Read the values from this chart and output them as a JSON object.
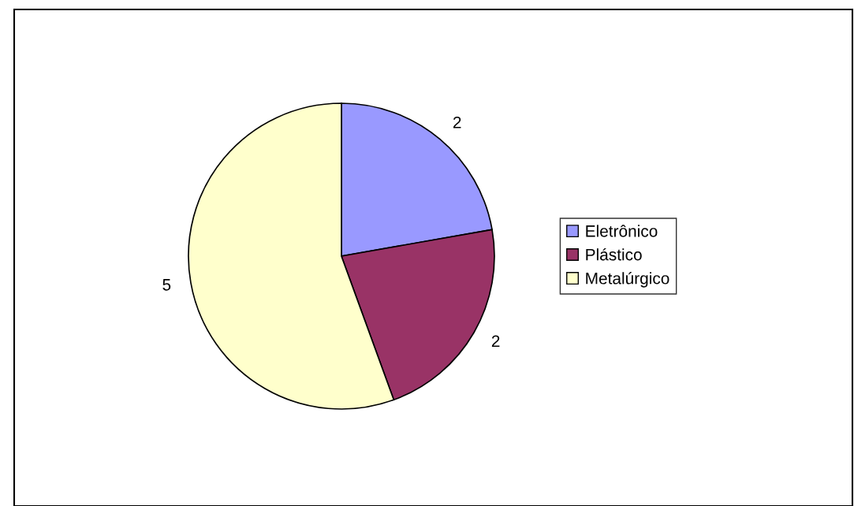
{
  "chart_data": {
    "type": "pie",
    "categories": [
      "Eletrônico",
      "Plástico",
      "Metalúrgico"
    ],
    "values": [
      2,
      2,
      5
    ],
    "colors": [
      "#9999ff",
      "#993366",
      "#ffffcc"
    ],
    "data_labels": true,
    "legend": "right"
  }
}
